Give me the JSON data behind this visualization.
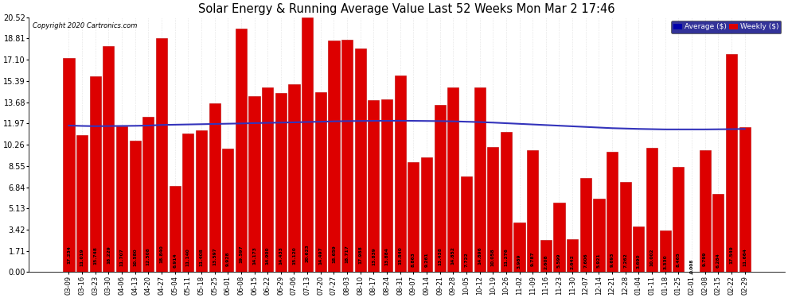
{
  "title": "Solar Energy & Running Average Value Last 52 Weeks Mon Mar 2 17:46",
  "copyright": "Copyright 2020 Cartronics.com",
  "bar_color": "#dd0000",
  "bar_edge_color": "#bb0000",
  "avg_line_color": "#3333bb",
  "background_color": "#ffffff",
  "plot_bg_color": "#ffffff",
  "grid_color": "#aaaaaa",
  "ylim": [
    0,
    20.52
  ],
  "yticks": [
    0.0,
    1.71,
    3.42,
    5.13,
    6.84,
    8.55,
    10.26,
    11.97,
    13.68,
    15.39,
    17.1,
    18.81,
    20.52
  ],
  "legend_avg_color": "#0000aa",
  "legend_weekly_color": "#dd0000",
  "categories": [
    "03-09",
    "03-16",
    "03-23",
    "03-30",
    "04-06",
    "04-13",
    "04-20",
    "04-27",
    "05-04",
    "05-11",
    "05-18",
    "05-25",
    "06-01",
    "06-08",
    "06-15",
    "06-22",
    "06-29",
    "07-06",
    "07-13",
    "07-20",
    "07-27",
    "08-03",
    "08-10",
    "08-17",
    "08-24",
    "08-31",
    "09-07",
    "09-14",
    "09-21",
    "09-28",
    "10-05",
    "10-12",
    "10-19",
    "10-26",
    "11-02",
    "11-09",
    "11-16",
    "11-23",
    "11-30",
    "12-07",
    "12-14",
    "12-21",
    "12-28",
    "01-04",
    "01-11",
    "01-18",
    "01-25",
    "02-01",
    "02-08",
    "02-15",
    "02-22",
    "02-29"
  ],
  "values": [
    17.234,
    11.019,
    15.748,
    18.229,
    11.707,
    10.58,
    12.508,
    18.84,
    6.914,
    11.14,
    11.408,
    13.597,
    9.928,
    19.597,
    14.173,
    14.9,
    14.433,
    15.12,
    20.623,
    14.497,
    18.659,
    18.717,
    17.988,
    13.839,
    13.884,
    15.84,
    8.863,
    9.261,
    13.438,
    14.852,
    7.722,
    14.896,
    10.058,
    11.276,
    3.989,
    9.787,
    2.608,
    5.599,
    2.642,
    7.606,
    5.921,
    9.693,
    7.262,
    3.69,
    10.002,
    3.33,
    8.465,
    0.008,
    9.799,
    6.284,
    17.549,
    11.664
  ],
  "avg_values": [
    11.8,
    11.77,
    11.75,
    11.76,
    11.77,
    11.78,
    11.8,
    11.85,
    11.87,
    11.89,
    11.91,
    11.93,
    11.95,
    11.97,
    12.0,
    12.02,
    12.04,
    12.06,
    12.09,
    12.11,
    12.14,
    12.16,
    12.17,
    12.18,
    12.18,
    12.19,
    12.18,
    12.17,
    12.16,
    12.14,
    12.11,
    12.08,
    12.04,
    11.99,
    11.94,
    11.89,
    11.84,
    11.79,
    11.74,
    11.69,
    11.64,
    11.59,
    11.56,
    11.53,
    11.51,
    11.49,
    11.49,
    11.49,
    11.49,
    11.5,
    11.51,
    11.53
  ]
}
